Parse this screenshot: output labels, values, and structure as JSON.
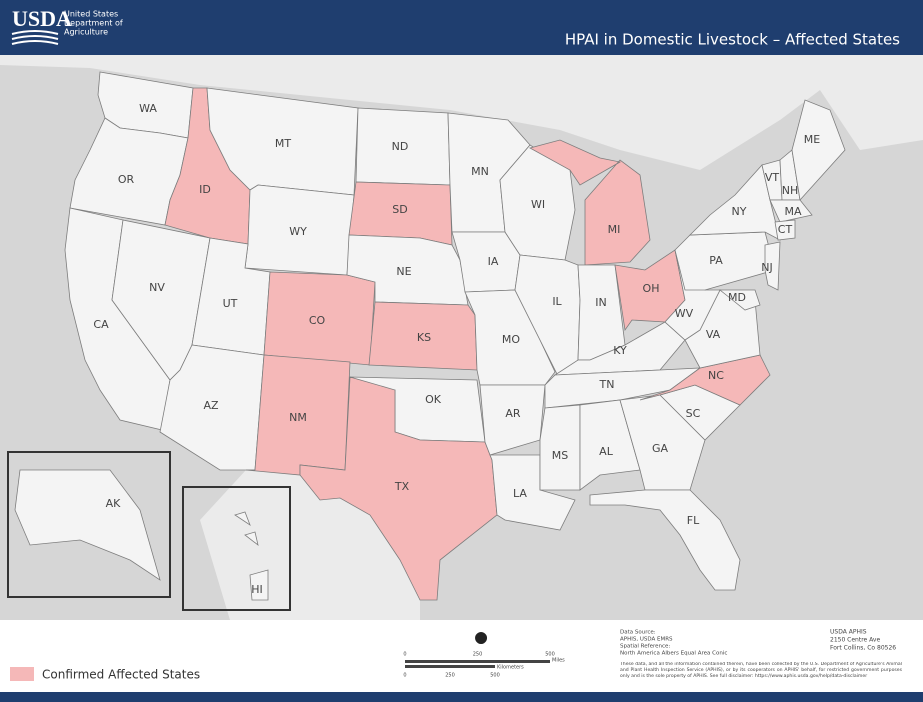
{
  "header": {
    "logo": "USDA",
    "agency_lines": [
      "United States",
      "Department of",
      "Agriculture"
    ],
    "title": "HPAI in Domestic Livestock – Affected States"
  },
  "map": {
    "affected_color": "#f5b8b8",
    "state_color": "#f4f4f4",
    "states": [
      {
        "label": "WA",
        "affected": false
      },
      {
        "label": "OR",
        "affected": false
      },
      {
        "label": "CA",
        "affected": false
      },
      {
        "label": "NV",
        "affected": false
      },
      {
        "label": "ID",
        "affected": true
      },
      {
        "label": "MT",
        "affected": false
      },
      {
        "label": "WY",
        "affected": false
      },
      {
        "label": "UT",
        "affected": false
      },
      {
        "label": "AZ",
        "affected": false
      },
      {
        "label": "CO",
        "affected": true
      },
      {
        "label": "NM",
        "affected": true
      },
      {
        "label": "ND",
        "affected": false
      },
      {
        "label": "SD",
        "affected": true
      },
      {
        "label": "NE",
        "affected": false
      },
      {
        "label": "KS",
        "affected": true
      },
      {
        "label": "OK",
        "affected": false
      },
      {
        "label": "TX",
        "affected": true
      },
      {
        "label": "MN",
        "affected": false
      },
      {
        "label": "IA",
        "affected": false
      },
      {
        "label": "MO",
        "affected": false
      },
      {
        "label": "AR",
        "affected": false
      },
      {
        "label": "LA",
        "affected": false
      },
      {
        "label": "WI",
        "affected": false
      },
      {
        "label": "IL",
        "affected": false
      },
      {
        "label": "MI",
        "affected": true
      },
      {
        "label": "IN",
        "affected": false
      },
      {
        "label": "OH",
        "affected": true
      },
      {
        "label": "KY",
        "affected": false
      },
      {
        "label": "TN",
        "affected": false
      },
      {
        "label": "MS",
        "affected": false
      },
      {
        "label": "AL",
        "affected": false
      },
      {
        "label": "GA",
        "affected": false
      },
      {
        "label": "FL",
        "affected": false
      },
      {
        "label": "SC",
        "affected": false
      },
      {
        "label": "NC",
        "affected": true
      },
      {
        "label": "VA",
        "affected": false
      },
      {
        "label": "WV",
        "affected": false
      },
      {
        "label": "PA",
        "affected": false
      },
      {
        "label": "NY",
        "affected": false
      },
      {
        "label": "VT",
        "affected": false
      },
      {
        "label": "NH",
        "affected": false
      },
      {
        "label": "ME",
        "affected": false
      },
      {
        "label": "MA",
        "affected": false
      },
      {
        "label": "CT",
        "affected": false
      },
      {
        "label": "NJ",
        "affected": false
      },
      {
        "label": "MD",
        "affected": false
      },
      {
        "label": "AK",
        "affected": false
      },
      {
        "label": "HI",
        "affected": false
      }
    ]
  },
  "legend": {
    "label": "Confirmed Affected States"
  },
  "scale_bar": {
    "miles": [
      "0",
      "250",
      "500"
    ],
    "miles_unit": "Miles",
    "km": [
      "0",
      "250",
      "500"
    ],
    "km_unit": "Kilometers"
  },
  "footer": {
    "source_lines": [
      "Data Source:",
      "APHIS, USDA EMRS",
      "Spatial Reference:",
      "North America Albers Equal Area Conic"
    ],
    "disclaimer": "These data, and all the information contained therein, have been collected by the U.S. Department of Agriculture's Animal and Plant Health Inspection Service (APHIS), or by its cooperators on APHIS' behalf, for restricted government purposes only and is the sole property of APHIS. See full disclaimer: https://www.aphis.usda.gov/help/data-disclaimer",
    "address_lines": [
      "USDA APHIS",
      "2150 Centre Ave",
      "Fort Collins, Co 80526"
    ]
  }
}
